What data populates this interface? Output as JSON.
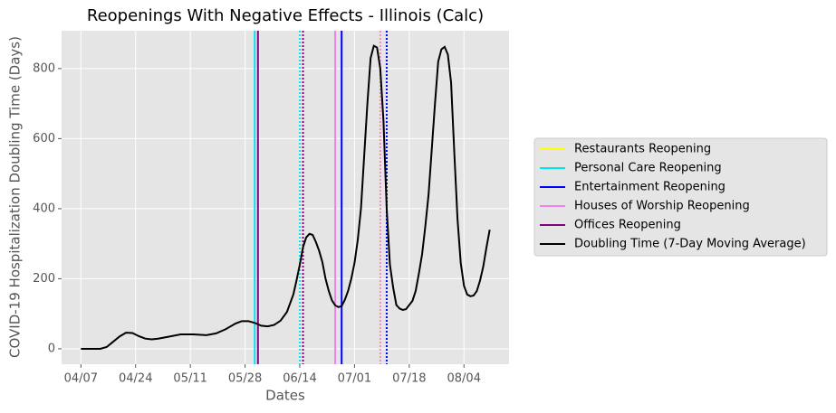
{
  "chart_data": {
    "type": "line",
    "title": "Reopenings With Negative Effects - Illinois (Calc)",
    "xlabel": "Dates",
    "ylabel": "COVID-19 Hospitalization Doubling Time (Days)",
    "xlim": [
      "04/01",
      "08/18"
    ],
    "xticks": [
      "04/07",
      "04/24",
      "05/11",
      "05/28",
      "06/14",
      "07/01",
      "07/18",
      "08/04"
    ],
    "ylim": [
      -44,
      908
    ],
    "yticks": [
      0,
      200,
      400,
      600,
      800
    ],
    "grid": true,
    "legend": "right",
    "events": [
      {
        "name": "Restaurants Reopening",
        "color": "#ffff00",
        "dates": [
          "06/25",
          "07/09"
        ]
      },
      {
        "name": "Personal Care Reopening",
        "color": "#00e5ee",
        "dates": [
          "05/31",
          "06/14"
        ]
      },
      {
        "name": "Entertainment Reopening",
        "color": "#0000ff",
        "dates": [
          "06/27",
          "07/11"
        ]
      },
      {
        "name": "Houses of Worship Reopening",
        "color": "#ee82ee",
        "dates": [
          "06/25",
          "07/09"
        ]
      },
      {
        "name": "Offices Reopening",
        "color": "#800080",
        "dates": [
          "06/01",
          "06/15"
        ]
      }
    ],
    "series": [
      {
        "name": "Doubling Time (7-Day Moving Average)",
        "color": "#000000",
        "x": [
          "04/07",
          "04/10",
          "04/13",
          "04/15",
          "04/17",
          "04/19",
          "04/21",
          "04/23",
          "04/25",
          "04/27",
          "04/29",
          "05/01",
          "05/04",
          "05/08",
          "05/12",
          "05/16",
          "05/19",
          "05/22",
          "05/25",
          "05/27",
          "05/29",
          "05/31",
          "06/02",
          "06/04",
          "06/06",
          "06/08",
          "06/10",
          "06/12",
          "06/13",
          "06/14",
          "06/15",
          "06/16",
          "06/17",
          "06/18",
          "06/19",
          "06/20",
          "06/21",
          "06/22",
          "06/23",
          "06/24",
          "06/25",
          "06/26",
          "06/27",
          "06/28",
          "06/29",
          "06/30",
          "07/01",
          "07/02",
          "07/03",
          "07/04",
          "07/05",
          "07/06",
          "07/07",
          "07/08",
          "07/09",
          "07/10",
          "07/11",
          "07/12",
          "07/13",
          "07/14",
          "07/15",
          "07/16",
          "07/17",
          "07/18",
          "07/19",
          "07/20",
          "07/21",
          "07/22",
          "07/23",
          "07/24",
          "07/25",
          "07/26",
          "07/27",
          "07/28",
          "07/29",
          "07/30",
          "07/31",
          "08/01",
          "08/02",
          "08/03",
          "08/04",
          "08/05",
          "08/06",
          "08/07",
          "08/08",
          "08/09",
          "08/10",
          "08/11",
          "08/12"
        ],
        "values": [
          0,
          0,
          0,
          5,
          20,
          35,
          46,
          45,
          36,
          29,
          27,
          29,
          34,
          41,
          41,
          39,
          44,
          56,
          72,
          79,
          79,
          74,
          66,
          64,
          68,
          80,
          105,
          155,
          196,
          240,
          290,
          318,
          328,
          325,
          305,
          280,
          248,
          200,
          165,
          138,
          124,
          119,
          122,
          140,
          165,
          200,
          245,
          310,
          400,
          550,
          700,
          830,
          865,
          860,
          800,
          650,
          400,
          240,
          175,
          125,
          115,
          111,
          113,
          125,
          137,
          165,
          215,
          270,
          350,
          440,
          570,
          700,
          820,
          855,
          862,
          840,
          760,
          560,
          370,
          245,
          180,
          155,
          150,
          152,
          165,
          195,
          235,
          290,
          340
        ]
      }
    ]
  }
}
